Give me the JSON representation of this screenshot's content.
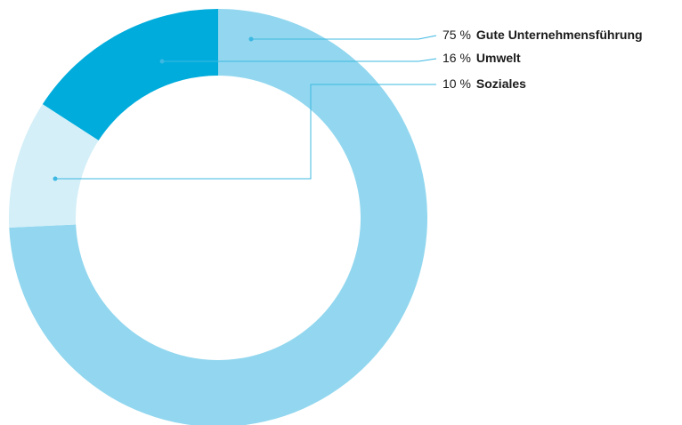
{
  "chart_data": {
    "type": "pie",
    "donut": true,
    "categories": [
      "Gute Unternehmensführung",
      "Umwelt",
      "Soziales"
    ],
    "values": [
      75,
      16,
      10
    ],
    "value_labels": [
      "75 %",
      "16 %",
      "10 %"
    ],
    "colors": [
      "#92d7ef",
      "#00acdc",
      "#d4eff8"
    ]
  }
}
